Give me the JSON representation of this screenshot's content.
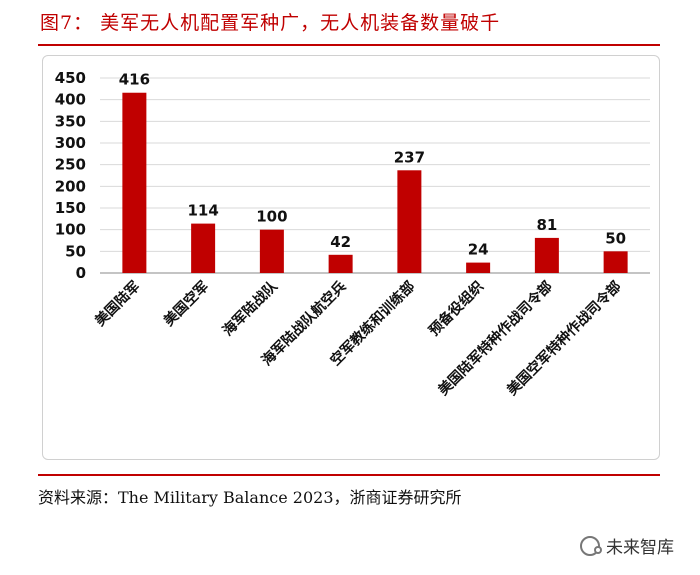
{
  "title": "图7： 美军无人机配置军种广，无人机装备数量破千",
  "source": "资料来源：The Military Balance 2023，浙商证券研究所",
  "watermark": "未来智库",
  "colors": {
    "bar": "#c00000",
    "rule": "#c00000"
  },
  "chart_data": {
    "type": "bar",
    "title": "图7： 美军无人机配置军种广，无人机装备数量破千",
    "xlabel": "",
    "ylabel": "",
    "ylim": [
      0,
      450
    ],
    "yticks": [
      "0",
      "50",
      "100",
      "150",
      "200",
      "250",
      "300",
      "350",
      "400",
      "450"
    ],
    "grid": true,
    "categories": [
      "美国陆军",
      "美国空军",
      "海军陆战队",
      "海军陆战队航空兵",
      "空军教练和训练部",
      "预备役组织",
      "美国陆军特种作战司令部",
      "美国空军特种作战司令部"
    ],
    "values": [
      416,
      114,
      100,
      42,
      237,
      24,
      81,
      50
    ],
    "data_labels": [
      "416",
      "114",
      "100",
      "42",
      "237",
      "24",
      "81",
      "50"
    ]
  }
}
